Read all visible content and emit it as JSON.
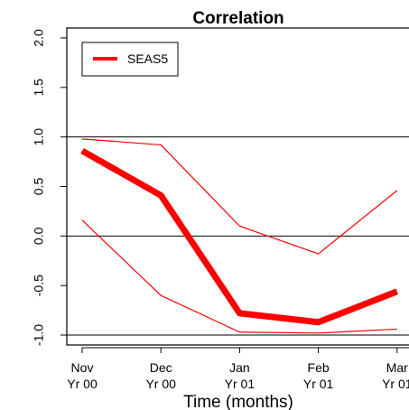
{
  "chart_data": {
    "type": "line",
    "title": "Correlation",
    "xlabel": "Time (months)",
    "ylabel": "",
    "categories": [
      {
        "month": "Nov",
        "year": "Yr 00"
      },
      {
        "month": "Dec",
        "year": "Yr 00"
      },
      {
        "month": "Jan",
        "year": "Yr 01"
      },
      {
        "month": "Feb",
        "year": "Yr 01"
      },
      {
        "month": "Mar",
        "year": "Yr 01"
      }
    ],
    "yticks": [
      "-1.0",
      "-0.5",
      "0.0",
      "0.5",
      "1.0",
      "1.5",
      "2.0"
    ],
    "ylim": [
      -1.1,
      2.1
    ],
    "reference_lines": [
      1.0,
      0.0,
      -1.0
    ],
    "series": [
      {
        "name": "SEAS5",
        "role": "estimate",
        "values": [
          0.86,
          0.41,
          -0.78,
          -0.87,
          -0.56
        ],
        "color": "#ff0000"
      },
      {
        "role": "upper bound",
        "values": [
          0.98,
          0.92,
          0.1,
          -0.18,
          0.46
        ],
        "color": "#ff0000"
      },
      {
        "role": "lower bound",
        "values": [
          0.16,
          -0.6,
          -0.97,
          -0.98,
          -0.94
        ],
        "color": "#ff0000"
      }
    ],
    "legend": {
      "position": "top-left",
      "entries": [
        "SEAS5"
      ]
    },
    "grid": false
  }
}
